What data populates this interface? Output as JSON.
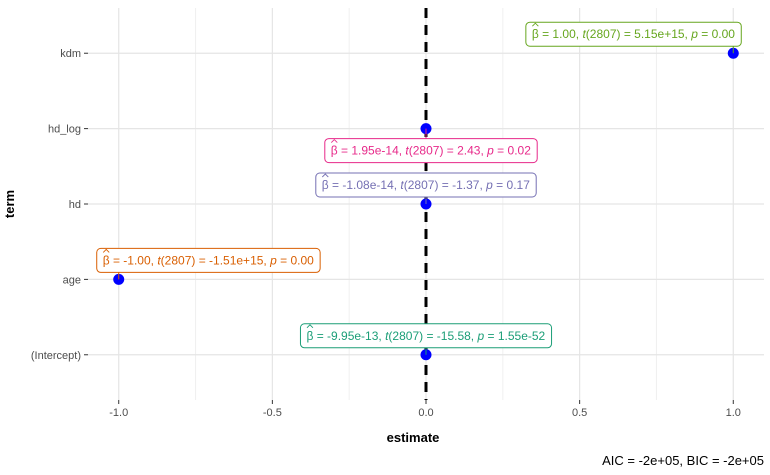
{
  "chart_data": {
    "type": "scatter",
    "xlabel": "estimate",
    "ylabel": "term",
    "xlim": [
      -1.1,
      1.1
    ],
    "x_ticks": [
      -1.0,
      -0.5,
      0.0,
      0.5,
      1.0
    ],
    "x_tick_labels": [
      "-1.0",
      "-0.5",
      "0.0",
      "0.5",
      "1.0"
    ],
    "categories": [
      "(Intercept)",
      "age",
      "hd",
      "hd_log",
      "kdm"
    ],
    "reference_line_x": 0,
    "grid": true,
    "point_color": "#0000ff",
    "points": [
      {
        "term": "kdm",
        "estimate": 1.0,
        "label": {
          "beta": "1.00",
          "t": "5.15e+15",
          "p": "0.00",
          "color": "#66a61e",
          "placement": "above-left"
        }
      },
      {
        "term": "hd_log",
        "estimate": 0.0,
        "label": {
          "beta": "1.95e-14",
          "t": "2.43",
          "p": "0.02",
          "color": "#e7298a",
          "placement": "below"
        }
      },
      {
        "term": "hd",
        "estimate": 0.0,
        "label": {
          "beta": "-1.08e-14",
          "t": "-1.37",
          "p": "0.17",
          "color": "#7570b3",
          "placement": "above"
        }
      },
      {
        "term": "age",
        "estimate": -1.0,
        "label": {
          "beta": "-1.00",
          "t": "-1.51e+15",
          "p": "0.00",
          "color": "#d95f02",
          "placement": "above-right"
        }
      },
      {
        "term": "(Intercept)",
        "estimate": 0.0,
        "label": {
          "beta": "-9.95e-13",
          "t": "-15.58",
          "p": "1.55e-52",
          "color": "#1b9e77",
          "placement": "above"
        }
      }
    ],
    "label_df": "2807",
    "caption": "AIC = -2e+05, BIC = -2e+05"
  }
}
